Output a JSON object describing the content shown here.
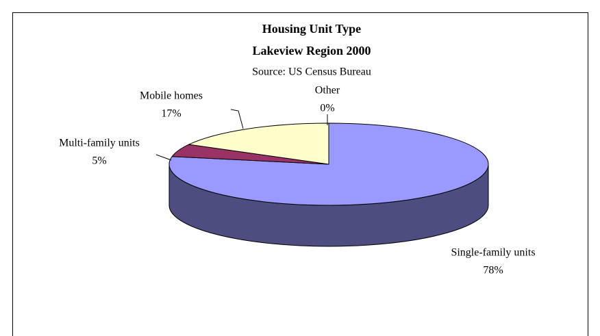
{
  "chart_data": {
    "type": "pie",
    "title": [
      "Housing Unit Type",
      "Lakeview Region 2000"
    ],
    "subtitle": "Source: US Census Bureau",
    "categories": [
      "Single-family units",
      "Multi-family units",
      "Mobile homes",
      "Other"
    ],
    "values": [
      78,
      5,
      17,
      0
    ],
    "value_labels": [
      "78%",
      "5%",
      "17%",
      "0%"
    ],
    "colors": [
      "#9999ff",
      "#993366",
      "#ffffcc",
      "#ccffff"
    ]
  }
}
